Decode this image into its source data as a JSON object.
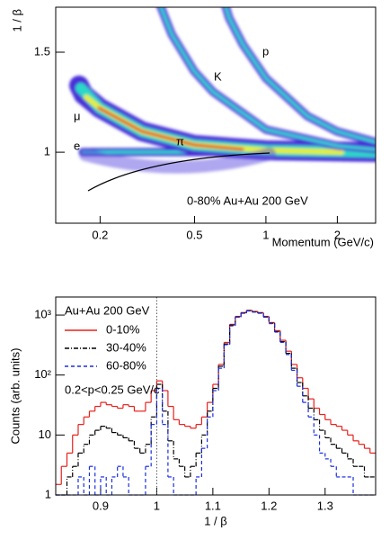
{
  "chart_data": [
    {
      "type": "density",
      "xlabel": "Momentum (GeV/c)",
      "ylabel": "1 / β",
      "log_x": true,
      "xlim": [
        0.13,
        2.9
      ],
      "xticks": [
        0.2,
        0.5,
        1,
        2
      ],
      "ylim": [
        0.645,
        1.725
      ],
      "yticks": [
        1,
        1.5
      ],
      "annotations": [
        "p",
        "K",
        "μ",
        "e",
        "π",
        "0-80% Au+Au 200 GeV"
      ]
    },
    {
      "type": "histogram",
      "xlabel": "1 / β",
      "ylabel": "Counts (arb. units)",
      "log_y": true,
      "xlim": [
        0.82,
        1.39
      ],
      "xticks": [
        0.9,
        1,
        1.1,
        1.2,
        1.3
      ],
      "ylim": [
        1,
        2000
      ],
      "yticks": [
        1,
        10,
        {
          "value": 100,
          "label": "10²"
        },
        {
          "value": 1000,
          "label": "10³"
        }
      ],
      "reference_x": 1,
      "legend_title": "Au+Au 200 GeV",
      "annotation": "0.2<p<0.25 GeV/c",
      "bins": [
        0.82,
        0.83,
        0.84,
        0.85,
        0.86,
        0.87,
        0.88,
        0.89,
        0.9,
        0.91,
        0.92,
        0.93,
        0.94,
        0.95,
        0.96,
        0.97,
        0.98,
        0.99,
        1.0,
        1.01,
        1.02,
        1.03,
        1.04,
        1.05,
        1.06,
        1.07,
        1.08,
        1.09,
        1.1,
        1.11,
        1.12,
        1.13,
        1.14,
        1.15,
        1.16,
        1.17,
        1.18,
        1.19,
        1.2,
        1.21,
        1.22,
        1.23,
        1.24,
        1.25,
        1.26,
        1.27,
        1.28,
        1.29,
        1.3,
        1.31,
        1.32,
        1.33,
        1.34,
        1.35,
        1.36,
        1.37,
        1.38,
        1.39
      ],
      "series": [
        {
          "name": "0-10%",
          "color": "#e8201c",
          "linestyle": "solid",
          "values": [
            1.5,
            3,
            5,
            10,
            15,
            20,
            25,
            30,
            35,
            32,
            30,
            28,
            32,
            30,
            25,
            25,
            35,
            55,
            80,
            55,
            30,
            18,
            15,
            14,
            13,
            15,
            20,
            35,
            70,
            150,
            350,
            700,
            950,
            1100,
            1200,
            1150,
            1100,
            950,
            750,
            550,
            380,
            250,
            150,
            90,
            60,
            40,
            28,
            22,
            18,
            15,
            14,
            12,
            10,
            8,
            7,
            6,
            5
          ]
        },
        {
          "name": "30-40%",
          "color": "#000000",
          "linestyle": "dashdot",
          "values": [
            1,
            1,
            2,
            3,
            5,
            7,
            10,
            12,
            14,
            13,
            11,
            10,
            9,
            8,
            6,
            5,
            7,
            20,
            70,
            25,
            8,
            4,
            3,
            2,
            3,
            5,
            10,
            25,
            60,
            140,
            330,
            680,
            930,
            1080,
            1180,
            1130,
            1080,
            930,
            730,
            530,
            360,
            230,
            130,
            75,
            45,
            28,
            18,
            12,
            9,
            7,
            6,
            5,
            4,
            3,
            3,
            2,
            2
          ]
        },
        {
          "name": "60-80%",
          "color": "#1a2ee0",
          "linestyle": "dashed",
          "values": [
            1,
            1,
            1,
            1,
            2,
            1,
            3,
            1,
            2,
            1,
            2,
            3,
            2,
            1,
            1,
            1,
            3,
            15,
            60,
            15,
            2,
            1,
            1,
            1,
            1,
            2,
            6,
            20,
            55,
            130,
            320,
            660,
            920,
            1070,
            1170,
            1120,
            1070,
            920,
            720,
            520,
            350,
            220,
            120,
            65,
            35,
            20,
            10,
            5,
            4,
            3,
            2,
            2,
            2,
            1,
            1,
            1,
            1
          ]
        }
      ]
    }
  ]
}
